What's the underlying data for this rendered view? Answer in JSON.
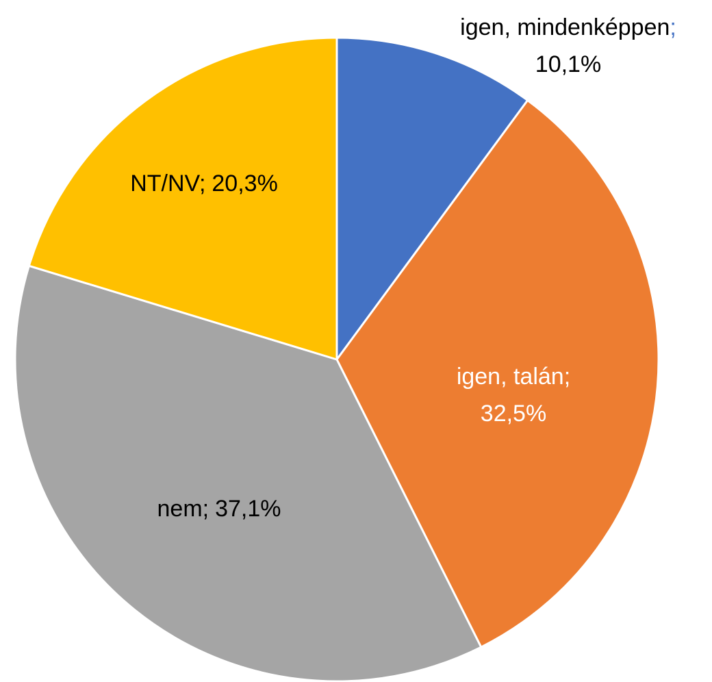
{
  "chart_data": {
    "type": "pie",
    "categories": [
      "igen, mindenképpen",
      "igen, talán",
      "nem",
      "NT/NV"
    ],
    "values": [
      10.1,
      32.5,
      37.1,
      20.3
    ],
    "value_labels": [
      "10,1%",
      "32,5%",
      "37,1%",
      "20,3%"
    ],
    "label_separator": ";",
    "colors": [
      "#4472c4",
      "#ed7d31",
      "#a5a5a5",
      "#ffc000"
    ]
  }
}
